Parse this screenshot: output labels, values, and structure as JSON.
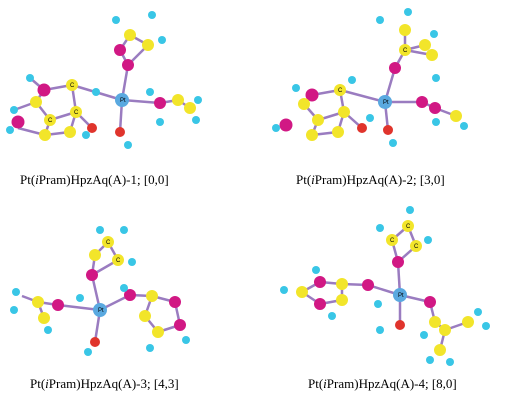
{
  "captions": [
    {
      "prefix": "Pt(",
      "italic": "i",
      "rest": "Pram)HpzAq(A)-1; [0,0]"
    },
    {
      "prefix": "Pt(",
      "italic": "i",
      "rest": "Pram)HpzAq(A)-2; [3,0]"
    },
    {
      "prefix": "Pt(",
      "italic": "i",
      "rest": "Pram)HpzAq(A)-3; [4,3]"
    },
    {
      "prefix": "Pt(",
      "italic": "i",
      "rest": "Pram)HpzAq(A)-4; [8,0]"
    }
  ],
  "atom_labels": {
    "carbon": "C",
    "platinum": "Pt"
  },
  "colors": {
    "carbon": "#f2e52a",
    "nitrogen": "#d11884",
    "hydrogen": "#39c6e6",
    "platinum": "#5aa9e0",
    "oxygen": "#e0342c",
    "bond": "#9a7cc0"
  }
}
